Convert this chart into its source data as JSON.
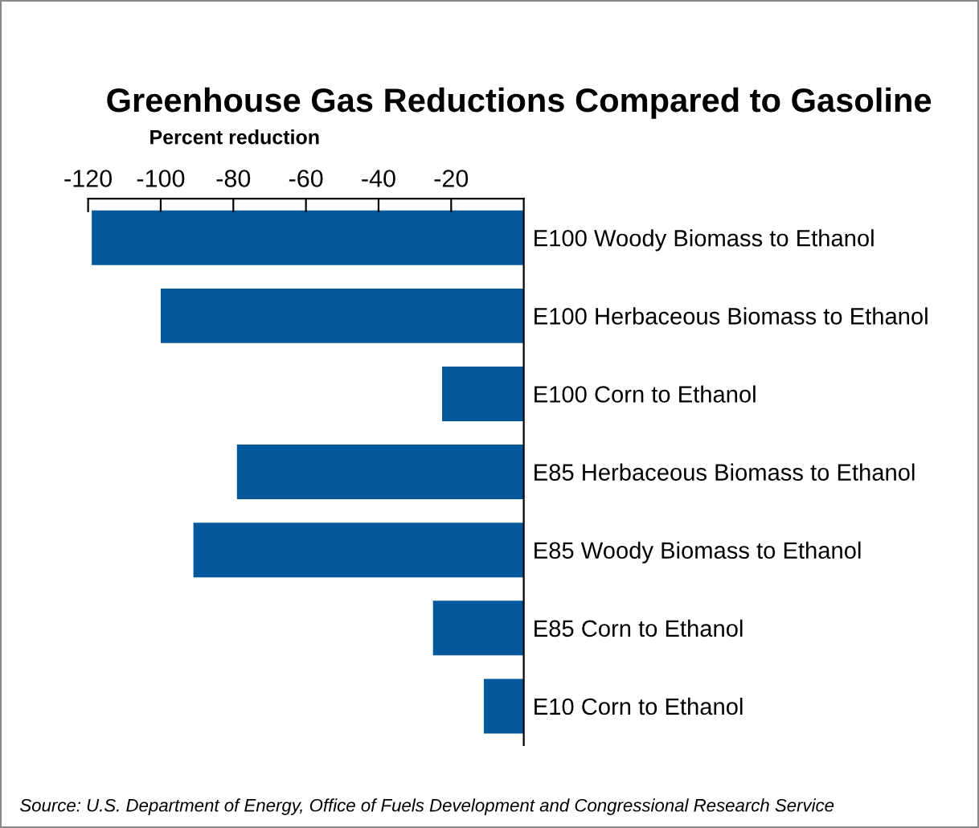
{
  "chart_data": {
    "type": "bar",
    "orientation": "horizontal",
    "title": "Greenhouse Gas Reductions Compared to Gasoline",
    "xlabel": "Percent reduction",
    "categories": [
      "E100 Woody Biomass to Ethanol",
      "E100 Herbaceous Biomass to Ethanol",
      "E100 Corn to Ethanol",
      "E85 Herbaceous Biomass to Ethanol",
      "E85 Woody Biomass to Ethanol",
      "E85 Corn to Ethanol",
      "E10 Corn to Ethanol"
    ],
    "values": [
      -119,
      -100,
      -22.5,
      -79,
      -91,
      -25,
      -11
    ],
    "color": "#03599c",
    "xlim": [
      -120,
      0
    ],
    "xticks": [
      -120,
      -100,
      -80,
      -60,
      -40,
      -20
    ],
    "grid": false,
    "legend": false,
    "annotations": [
      "Source: U.S. Department of Energy, Office of Fuels Development and Congressional Research Service"
    ]
  }
}
